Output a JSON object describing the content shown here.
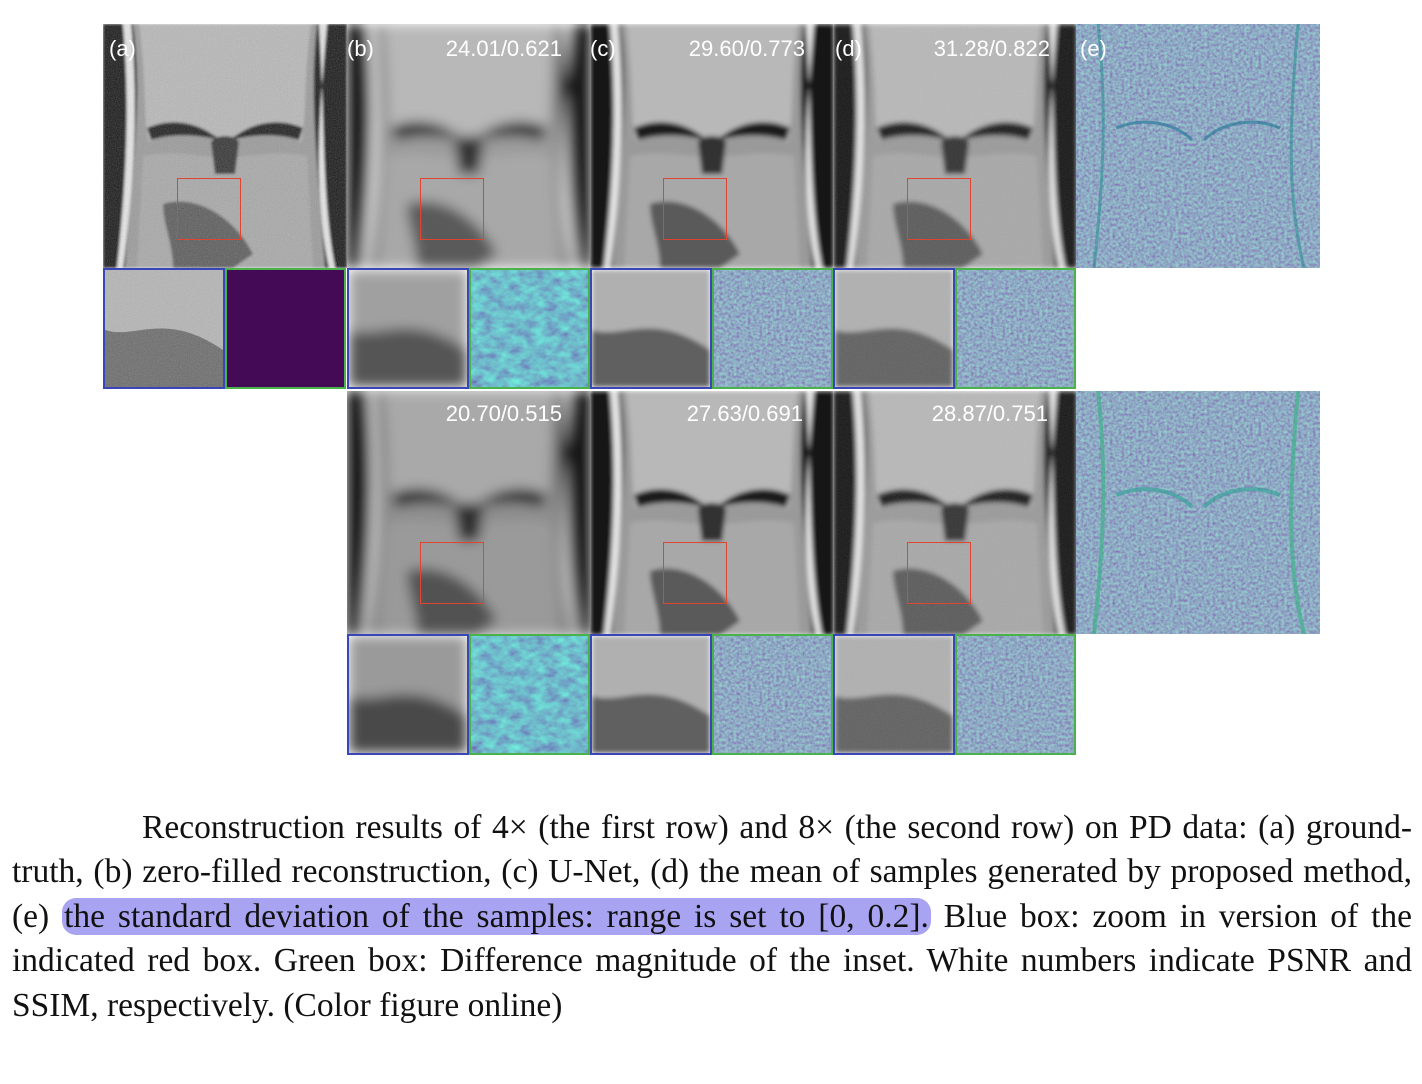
{
  "figure": {
    "panel_labels": [
      "(a)",
      "(b)",
      "(c)",
      "(d)",
      "(e)"
    ],
    "row1_metrics": [
      "24.01/0.621",
      "29.60/0.773",
      "31.28/0.822"
    ],
    "row2_metrics": [
      "20.70/0.515",
      "27.63/0.691",
      "28.87/0.751"
    ]
  },
  "caption": {
    "part1": "Reconstruction results of 4× (the first row) and 8× (the second row) on PD data: (a) ground-truth, (b) zero-filled reconstruction, (c) U-Net, (d) the mean of samples generated by proposed method, (e) ",
    "highlight": "the standard deviation of the samples: range is set to [0, 0.2].",
    "part2": " Blue box: zoom in version of the indicated red box. Green box: Difference magnitude of the inset. White numbers indicate PSNR and SSIM, respectively. (Color figure online)"
  },
  "colors": {
    "red_box": "#e0452f",
    "blue_box": "#3a46b8",
    "green_box": "#49b24a",
    "highlight": "#a9a4f2",
    "viridis_dark": "#440a55"
  }
}
